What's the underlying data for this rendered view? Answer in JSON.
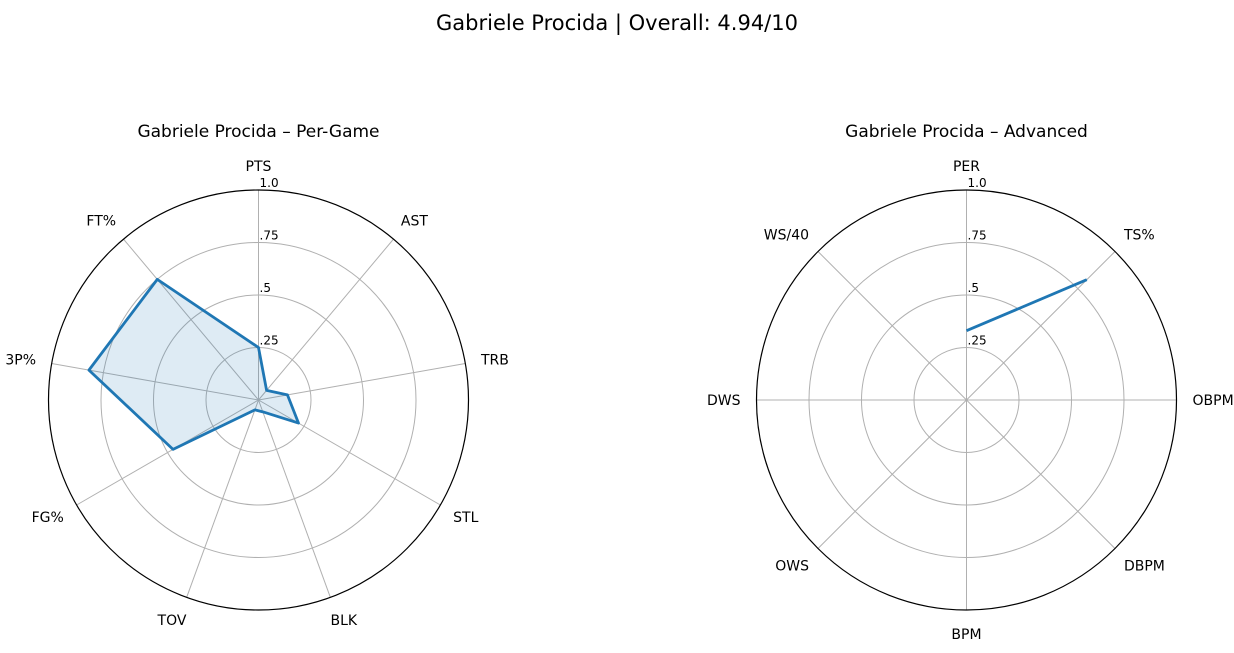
{
  "figure": {
    "title": "Gabriele Procida | Overall: 4.94/10",
    "colors": {
      "series": "#1f77b4",
      "grid": "#b0b0b0",
      "outer": "#000000"
    }
  },
  "chart_data": [
    {
      "type": "radar",
      "title": "Gabriele Procida – Per-Game",
      "categories": [
        "PTS",
        "AST",
        "TRB",
        "STL",
        "BLK",
        "TOV",
        "FG%",
        "3P%",
        "FT%"
      ],
      "values": [
        0.25,
        0.06,
        0.14,
        0.22,
        0.06,
        0.05,
        0.47,
        0.82,
        0.75
      ],
      "range": [
        0,
        1
      ],
      "ticks": [
        0.25,
        0.5,
        0.75,
        1.0
      ],
      "tick_labels": [
        ".25",
        ".5",
        ".75",
        "1.0"
      ],
      "filled": true
    },
    {
      "type": "radar",
      "title": "Gabriele Procida – Advanced",
      "categories": [
        "PER",
        "TS%",
        "OBPM",
        "DBPM",
        "BPM",
        "OWS",
        "DWS",
        "WS/40"
      ],
      "values": [
        0.33,
        0.81,
        null,
        null,
        null,
        null,
        null,
        null
      ],
      "range": [
        0,
        1
      ],
      "ticks": [
        0.25,
        0.5,
        0.75,
        1.0
      ],
      "tick_labels": [
        ".25",
        ".5",
        ".75",
        "1.0"
      ],
      "filled": false
    }
  ]
}
